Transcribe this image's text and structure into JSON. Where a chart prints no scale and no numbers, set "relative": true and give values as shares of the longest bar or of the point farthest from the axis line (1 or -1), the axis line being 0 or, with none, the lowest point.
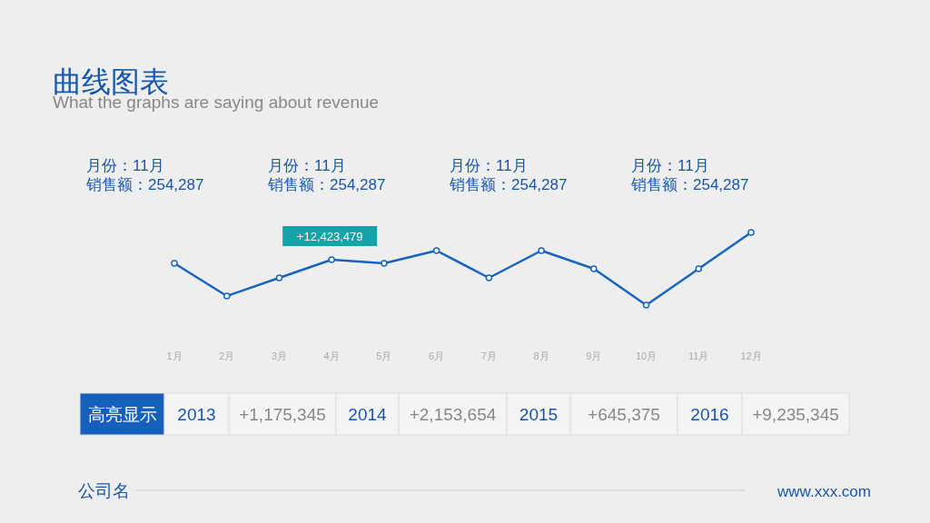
{
  "chart_data": {
    "type": "line",
    "title": "曲线图表",
    "subtitle": "What the graphs are saying about revenue",
    "categories": [
      "1月",
      "2月",
      "3月",
      "4月",
      "5月",
      "6月",
      "7月",
      "8月",
      "9月",
      "10月",
      "11月",
      "12月"
    ],
    "relative": true,
    "series": [
      {
        "color": "#1565c0",
        "values": [
          0.575,
          0.125,
          0.375,
          0.625,
          0.575,
          0.75,
          0.375,
          0.75,
          0.5,
          0,
          0.5,
          1
        ]
      }
    ],
    "marker": "circle",
    "line_style": "solid",
    "grid": false,
    "annotations": [
      {
        "text": "+12,423,479",
        "x": "4月",
        "y": 0.625
      },
      "月份：11月",
      "销售额：254,287",
      "月份：11月",
      "销售额：254,287",
      "月份：11月",
      "销售额：254,287",
      "月份：11月",
      "销售额：254,287",
      "高亮显示",
      "2013",
      "+1,175,345",
      "2014",
      "+2,153,654",
      "2015",
      "+645,375",
      "2016",
      "+9,235,345",
      "公司名",
      "www.xxx.com"
    ]
  }
}
